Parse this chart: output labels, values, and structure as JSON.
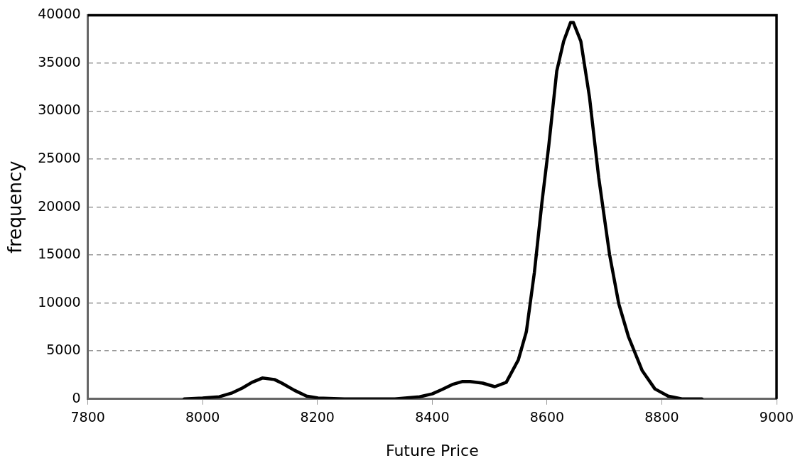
{
  "chart_data": {
    "type": "line",
    "xlabel": "Future Price",
    "ylabel": "frequency",
    "x": [
      7968,
      8000,
      8029,
      8050,
      8069,
      8086,
      8104,
      8125,
      8138,
      8160,
      8181,
      8201,
      8247,
      8335,
      8378,
      8400,
      8417,
      8435,
      8452,
      8466,
      8488,
      8509,
      8529,
      8550,
      8564,
      8578,
      8591,
      8603,
      8617,
      8629,
      8641,
      8646,
      8659,
      8674,
      8690,
      8709,
      8725,
      8742,
      8766,
      8788,
      8811,
      8835,
      8870
    ],
    "series": [
      {
        "color": "#000000",
        "values": [
          0,
          100,
          230,
          600,
          1130,
          1730,
          2180,
          2030,
          1650,
          900,
          300,
          100,
          0,
          0,
          230,
          530,
          980,
          1510,
          1810,
          1810,
          1650,
          1280,
          1730,
          4070,
          7000,
          13180,
          20400,
          26360,
          34190,
          37270,
          39230,
          39230,
          37270,
          31480,
          23120,
          15060,
          9940,
          6480,
          2940,
          1050,
          300,
          0,
          0
        ]
      }
    ],
    "xlim": [
      7800,
      9000
    ],
    "xticks": [
      7800,
      8000,
      8200,
      8400,
      8600,
      8800,
      9000
    ],
    "ylim": [
      0,
      40000
    ],
    "yticks": [
      0,
      5000,
      10000,
      15000,
      20000,
      25000,
      30000,
      35000,
      40000
    ],
    "grid": "y",
    "legend": false,
    "marker": "none",
    "line_style": "solid"
  }
}
